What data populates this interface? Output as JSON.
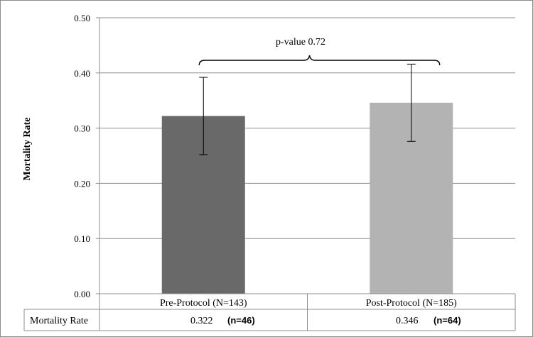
{
  "chart_data": {
    "type": "bar",
    "title": "",
    "xlabel": "",
    "ylabel": "Mortality Rate",
    "ylim": [
      0,
      0.5
    ],
    "yticks": [
      "0.00",
      "0.10",
      "0.20",
      "0.30",
      "0.40",
      "0.50"
    ],
    "grid": true,
    "categories": [
      "Pre-Protocol (N=143)",
      "Post-Protocol (N=185)"
    ],
    "values": [
      0.322,
      0.346
    ],
    "error_bars": [
      {
        "low": 0.252,
        "high": 0.392
      },
      {
        "low": 0.276,
        "high": 0.416
      }
    ],
    "bar_colors": [
      "#696969",
      "#b3b3b3"
    ],
    "annotation": "p-value 0.72",
    "data_table": {
      "row_label": "Mortality Rate",
      "values": [
        "0.322",
        "0.346"
      ],
      "counts": [
        "(n=46)",
        "(n=64)"
      ]
    }
  }
}
